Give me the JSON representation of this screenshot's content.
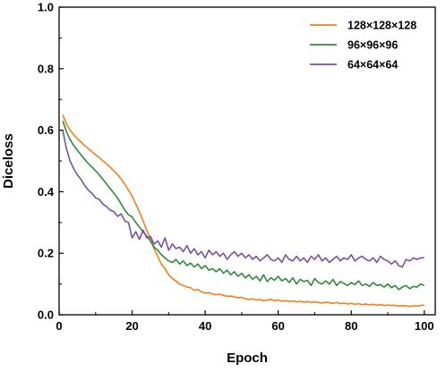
{
  "chart_data": {
    "type": "line",
    "title": "",
    "xlabel": "Epoch",
    "ylabel": "Diceloss",
    "xlim": [
      0,
      103
    ],
    "ylim": [
      0.0,
      1.0
    ],
    "xticks": [
      0,
      20,
      40,
      60,
      80,
      100
    ],
    "yticks": [
      0.0,
      0.2,
      0.4,
      0.6,
      0.8,
      1.0
    ],
    "xtick_labels": [
      "0",
      "20",
      "40",
      "60",
      "80",
      "100"
    ],
    "ytick_labels": [
      "0.0",
      "0.2",
      "0.4",
      "0.6",
      "0.8",
      "1.0"
    ],
    "grid": false,
    "legend_position": "top-right",
    "x": [
      1,
      2,
      3,
      4,
      5,
      6,
      7,
      8,
      9,
      10,
      11,
      12,
      13,
      14,
      15,
      16,
      17,
      18,
      19,
      20,
      21,
      22,
      23,
      24,
      25,
      26,
      27,
      28,
      29,
      30,
      31,
      32,
      33,
      34,
      35,
      36,
      37,
      38,
      39,
      40,
      41,
      42,
      43,
      44,
      45,
      46,
      47,
      48,
      49,
      50,
      51,
      52,
      53,
      54,
      55,
      56,
      57,
      58,
      59,
      60,
      61,
      62,
      63,
      64,
      65,
      66,
      67,
      68,
      69,
      70,
      71,
      72,
      73,
      74,
      75,
      76,
      77,
      78,
      79,
      80,
      81,
      82,
      83,
      84,
      85,
      86,
      87,
      88,
      89,
      90,
      91,
      92,
      93,
      94,
      95,
      96,
      97,
      98,
      99,
      100
    ],
    "series": [
      {
        "name": "128×128×128",
        "color": "#f57f17",
        "values": [
          0.65,
          0.62,
          0.6,
          0.585,
          0.572,
          0.561,
          0.55,
          0.54,
          0.53,
          0.52,
          0.511,
          0.5,
          0.49,
          0.48,
          0.468,
          0.456,
          0.441,
          0.424,
          0.405,
          0.385,
          0.36,
          0.335,
          0.305,
          0.275,
          0.245,
          0.215,
          0.19,
          0.165,
          0.15,
          0.13,
          0.118,
          0.11,
          0.1,
          0.095,
          0.09,
          0.088,
          0.08,
          0.082,
          0.075,
          0.07,
          0.072,
          0.068,
          0.065,
          0.067,
          0.063,
          0.06,
          0.061,
          0.058,
          0.055,
          0.057,
          0.052,
          0.05,
          0.052,
          0.048,
          0.05,
          0.045,
          0.048,
          0.05,
          0.046,
          0.048,
          0.044,
          0.046,
          0.043,
          0.045,
          0.042,
          0.044,
          0.041,
          0.043,
          0.04,
          0.042,
          0.04,
          0.038,
          0.041,
          0.039,
          0.037,
          0.04,
          0.036,
          0.038,
          0.035,
          0.037,
          0.034,
          0.036,
          0.033,
          0.035,
          0.032,
          0.034,
          0.031,
          0.033,
          0.03,
          0.032,
          0.03,
          0.031,
          0.028,
          0.03,
          0.029,
          0.027,
          0.029,
          0.028,
          0.03,
          0.032
        ]
      },
      {
        "name": "96×96×96",
        "color": "#2e8b3a",
        "values": [
          0.63,
          0.595,
          0.57,
          0.55,
          0.535,
          0.52,
          0.505,
          0.492,
          0.48,
          0.468,
          0.455,
          0.44,
          0.425,
          0.41,
          0.395,
          0.38,
          0.36,
          0.34,
          0.325,
          0.318,
          0.3,
          0.285,
          0.27,
          0.255,
          0.24,
          0.22,
          0.21,
          0.195,
          0.185,
          0.175,
          0.17,
          0.18,
          0.165,
          0.175,
          0.16,
          0.168,
          0.155,
          0.165,
          0.15,
          0.16,
          0.145,
          0.15,
          0.14,
          0.15,
          0.135,
          0.145,
          0.13,
          0.14,
          0.125,
          0.135,
          0.12,
          0.13,
          0.115,
          0.125,
          0.11,
          0.13,
          0.108,
          0.12,
          0.112,
          0.125,
          0.11,
          0.118,
          0.105,
          0.12,
          0.1,
          0.115,
          0.108,
          0.112,
          0.095,
          0.118,
          0.105,
          0.1,
          0.11,
          0.1,
          0.115,
          0.095,
          0.108,
          0.102,
          0.095,
          0.105,
          0.098,
          0.11,
          0.095,
          0.1,
          0.092,
          0.105,
          0.095,
          0.098,
          0.09,
          0.1,
          0.088,
          0.095,
          0.082,
          0.09,
          0.095,
          0.085,
          0.092,
          0.09,
          0.1,
          0.095
        ]
      },
      {
        "name": "64×64×64",
        "color": "#7b4fa8",
        "values": [
          0.6,
          0.54,
          0.5,
          0.475,
          0.455,
          0.44,
          0.42,
          0.405,
          0.395,
          0.38,
          0.375,
          0.36,
          0.352,
          0.34,
          0.335,
          0.32,
          0.328,
          0.305,
          0.3,
          0.25,
          0.27,
          0.245,
          0.275,
          0.25,
          0.255,
          0.23,
          0.24,
          0.22,
          0.25,
          0.21,
          0.23,
          0.215,
          0.22,
          0.205,
          0.225,
          0.2,
          0.215,
          0.195,
          0.205,
          0.185,
          0.21,
          0.195,
          0.205,
          0.19,
          0.2,
          0.18,
          0.195,
          0.205,
          0.19,
          0.2,
          0.185,
          0.195,
          0.18,
          0.19,
          0.175,
          0.185,
          0.195,
          0.18,
          0.175,
          0.185,
          0.17,
          0.195,
          0.18,
          0.175,
          0.19,
          0.175,
          0.185,
          0.17,
          0.19,
          0.18,
          0.195,
          0.175,
          0.185,
          0.17,
          0.18,
          0.19,
          0.175,
          0.185,
          0.18,
          0.195,
          0.175,
          0.185,
          0.19,
          0.18,
          0.175,
          0.185,
          0.17,
          0.19,
          0.18,
          0.175,
          0.165,
          0.175,
          0.16,
          0.155,
          0.18,
          0.175,
          0.185,
          0.18,
          0.185,
          0.185
        ]
      }
    ]
  }
}
